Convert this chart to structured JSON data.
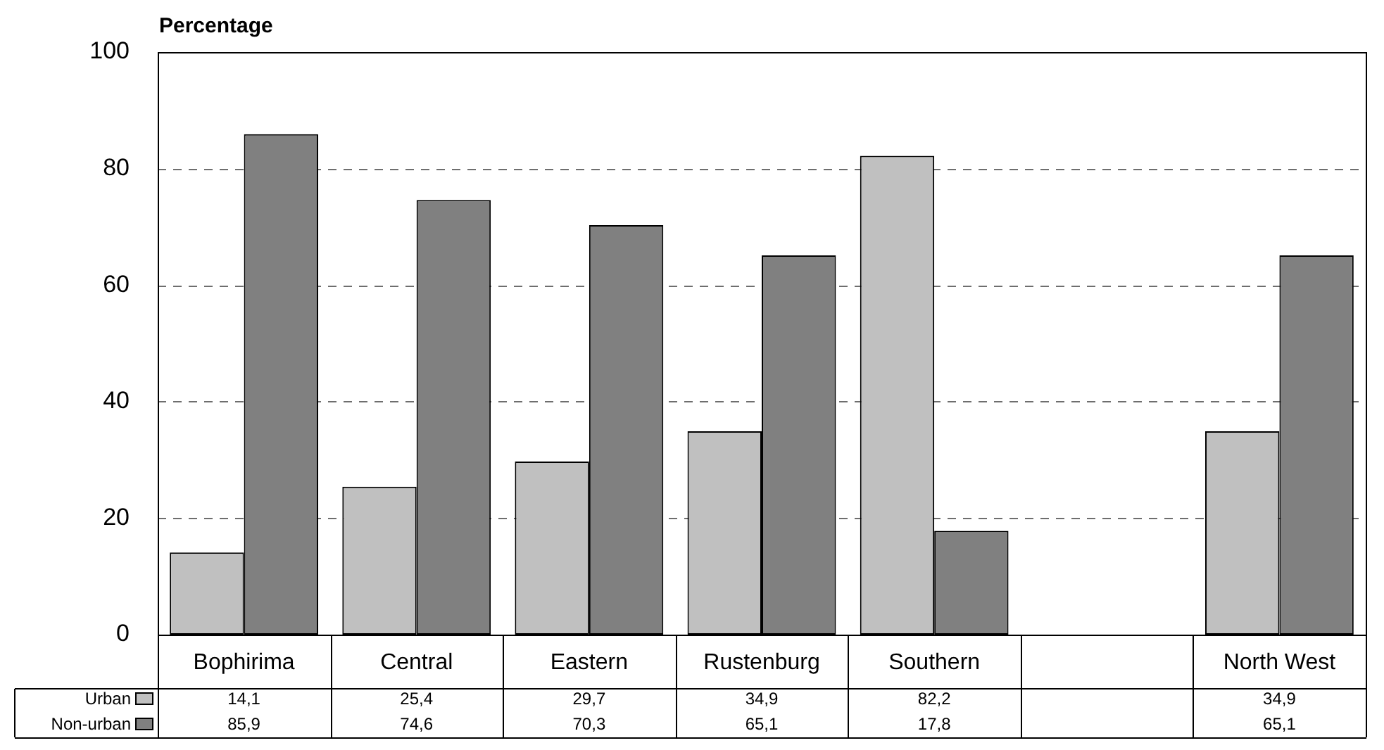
{
  "chart_data": {
    "type": "bar",
    "ylabel": "Percentage",
    "categories": [
      "Bophirima",
      "Central",
      "Eastern",
      "Rustenburg",
      "Southern",
      null,
      "North West"
    ],
    "series": [
      {
        "name": "Urban",
        "color": "#c0c0c0",
        "values": [
          14.1,
          25.4,
          29.7,
          34.9,
          82.2,
          null,
          34.9
        ],
        "value_labels": [
          "14,1",
          "25,4",
          "29,7",
          "34,9",
          "82,2",
          null,
          "34,9"
        ]
      },
      {
        "name": "Non-urban",
        "color": "#808080",
        "values": [
          85.9,
          74.6,
          70.3,
          65.1,
          17.8,
          null,
          65.1
        ],
        "value_labels": [
          "85,9",
          "74,6",
          "70,3",
          "65,1",
          "17,8",
          null,
          "65,1"
        ]
      }
    ],
    "ylim": [
      0,
      100
    ],
    "yticks": [
      0,
      20,
      40,
      60,
      80,
      100
    ],
    "grid": "y",
    "legend": "bottom left"
  }
}
